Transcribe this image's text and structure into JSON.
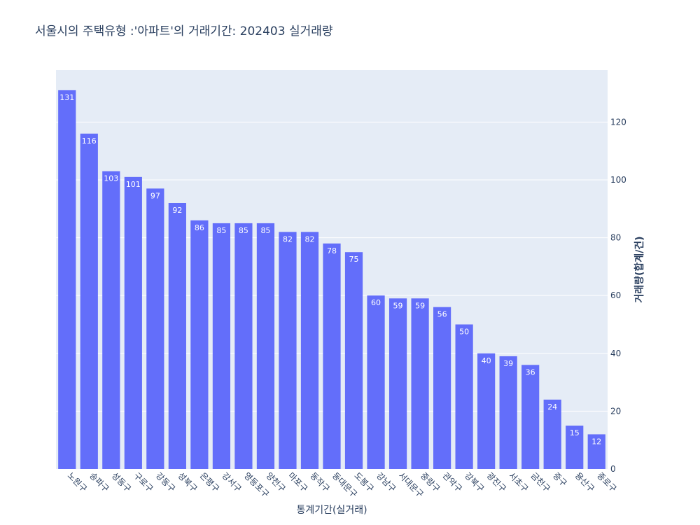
{
  "chart_data": {
    "type": "bar",
    "title": "서울시의 주택유형 :'아파트'의 거래기간: 202403 실거래량",
    "xlabel": "통계기간(실거래)",
    "ylabel": "거래량(합계/건)",
    "y_axis_side": "right",
    "ylim": [
      0,
      138
    ],
    "yticks": [
      0,
      20,
      40,
      60,
      80,
      100,
      120
    ],
    "grid": true,
    "legend": "none",
    "bar_color": "#636efa",
    "plot_bg": "#e5ecf6",
    "categories": [
      "노원구",
      "송파구",
      "성동구",
      "구로구",
      "강동구",
      "성북구",
      "은평구",
      "강서구",
      "영등포구",
      "양천구",
      "마포구",
      "동작구",
      "동대문구",
      "도봉구",
      "강남구",
      "서대문구",
      "중랑구",
      "관악구",
      "강북구",
      "광진구",
      "서초구",
      "금천구",
      "중구",
      "용산구",
      "종로구"
    ],
    "values": [
      131,
      116,
      103,
      101,
      97,
      92,
      86,
      85,
      85,
      85,
      82,
      82,
      78,
      75,
      60,
      59,
      59,
      56,
      50,
      40,
      39,
      36,
      24,
      15,
      12
    ]
  }
}
